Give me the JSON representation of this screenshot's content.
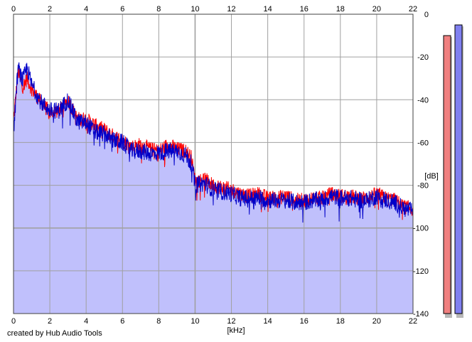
{
  "chart_data": {
    "type": "line",
    "xlabel": "[kHz]",
    "ylabel": "[dB]",
    "xlim": [
      0,
      22
    ],
    "ylim": [
      -140,
      0
    ],
    "x_ticks": [
      0,
      2,
      4,
      6,
      8,
      10,
      12,
      14,
      16,
      18,
      20,
      22
    ],
    "y_ticks": [
      0,
      -20,
      -40,
      -60,
      -80,
      -100,
      -120,
      -140
    ],
    "grid": true,
    "fill_color": "#c0c0fc",
    "series": [
      {
        "color": "#ff0000",
        "x": [
          0,
          0.25,
          0.5,
          0.75,
          1,
          1.5,
          2,
          2.5,
          3,
          3.5,
          4,
          4.5,
          5,
          5.5,
          6,
          6.5,
          7,
          7.5,
          8,
          8.5,
          9,
          9.5,
          9.8,
          10,
          10.5,
          11,
          11.5,
          12,
          12.5,
          13,
          13.5,
          14,
          14.5,
          15,
          15.5,
          16,
          16.5,
          17,
          17.5,
          18,
          18.5,
          19,
          19.5,
          20,
          20.5,
          21,
          21.5,
          22
        ],
        "values": [
          -50,
          -27,
          -34,
          -30,
          -35,
          -41,
          -46,
          -45,
          -40,
          -49,
          -49,
          -52,
          -54,
          -57,
          -59,
          -62,
          -61,
          -63,
          -64,
          -61,
          -63,
          -64,
          -67,
          -78,
          -77,
          -80,
          -81,
          -82,
          -84,
          -85,
          -84,
          -86,
          -86,
          -85,
          -87,
          -87,
          -86,
          -86,
          -84,
          -85,
          -85,
          -86,
          -86,
          -84,
          -86,
          -87,
          -90,
          -91
        ]
      },
      {
        "color": "#0000c8",
        "x": [
          0,
          0.25,
          0.5,
          0.75,
          1,
          1.5,
          2,
          2.5,
          3,
          3.5,
          4,
          4.5,
          5,
          5.5,
          6,
          6.5,
          7,
          7.5,
          8,
          8.5,
          9,
          9.5,
          9.8,
          10,
          10.5,
          11,
          11.5,
          12,
          12.5,
          13,
          13.5,
          14,
          14.5,
          15,
          15.5,
          16,
          16.5,
          17,
          17.5,
          18,
          18.5,
          19,
          19.5,
          20,
          20.5,
          21,
          21.5,
          22
        ],
        "values": [
          -55,
          -25,
          -31,
          -25,
          -33,
          -41,
          -45,
          -45,
          -40,
          -50,
          -51,
          -55,
          -56,
          -59,
          -60,
          -64,
          -64,
          -65,
          -65,
          -64,
          -64,
          -66,
          -70,
          -80,
          -79,
          -82,
          -83,
          -84,
          -86,
          -86,
          -86,
          -87,
          -87,
          -87,
          -88,
          -88,
          -87,
          -87,
          -85,
          -86,
          -86,
          -87,
          -87,
          -85,
          -87,
          -88,
          -91,
          -92
        ]
      }
    ],
    "level_meters": [
      {
        "color": "#f08080",
        "value": -10
      },
      {
        "color": "#8080f0",
        "value": -5
      }
    ]
  },
  "footer": {
    "credit": "created by Hub Audio Tools"
  }
}
